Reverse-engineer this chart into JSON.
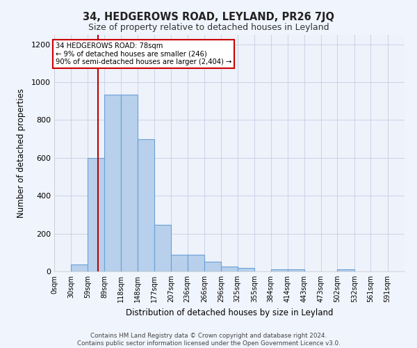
{
  "title": "34, HEDGEROWS ROAD, LEYLAND, PR26 7JQ",
  "subtitle": "Size of property relative to detached houses in Leyland",
  "xlabel": "Distribution of detached houses by size in Leyland",
  "ylabel": "Number of detached properties",
  "bar_color": "#b8d0eb",
  "bar_edge_color": "#6a9fd8",
  "annotation_box_color": "#cc0000",
  "annotation_text": "34 HEDGEROWS ROAD: 78sqm\n← 9% of detached houses are smaller (246)\n90% of semi-detached houses are larger (2,404) →",
  "property_line_x": 78,
  "property_line_color": "#bb0000",
  "footer_text": "Contains HM Land Registry data © Crown copyright and database right 2024.\nContains public sector information licensed under the Open Government Licence v3.0.",
  "bin_edges": [
    0,
    30,
    59,
    89,
    118,
    148,
    177,
    207,
    236,
    266,
    296,
    325,
    355,
    384,
    414,
    443,
    473,
    502,
    532,
    561,
    591,
    621
  ],
  "bar_heights": [
    0,
    35,
    600,
    935,
    935,
    700,
    245,
    90,
    90,
    50,
    25,
    20,
    0,
    10,
    10,
    0,
    0,
    10,
    0,
    0,
    0
  ],
  "xlim": [
    0,
    621
  ],
  "ylim": [
    0,
    1250
  ],
  "yticks": [
    0,
    200,
    400,
    600,
    800,
    1000,
    1200
  ],
  "plot_bg_color": "#eef2fa",
  "grid_color": "#c8d4e8",
  "fig_bg_color": "#f0f4fc"
}
